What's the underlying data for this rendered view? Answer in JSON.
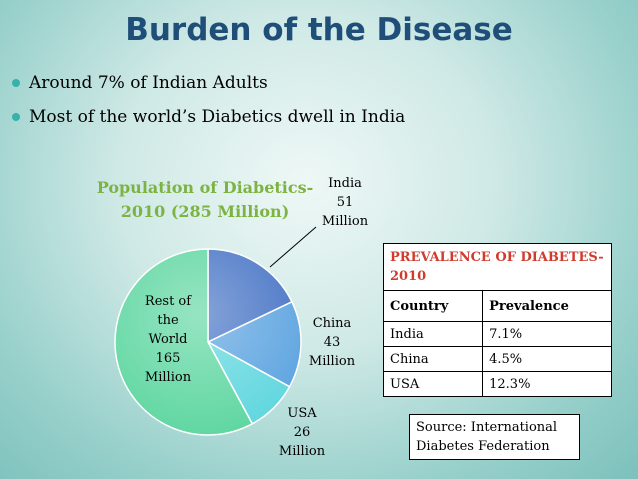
{
  "slide": {
    "title": "Burden of the Disease",
    "bullets": [
      "Around 7% of Indian Adults",
      "Most of the world’s Diabetics dwell in India"
    ]
  },
  "chart_data": {
    "type": "pie",
    "title_line1": "Population of Diabetics-",
    "title_line2": "2010 (285 Million)",
    "unit": "Million",
    "slices": [
      {
        "name": "India",
        "value": 51,
        "color": "#4472c4"
      },
      {
        "name": "China",
        "value": 43,
        "color": "#5ba3e0"
      },
      {
        "name": "USA",
        "value": 26,
        "color": "#5fd6de"
      },
      {
        "name": "Rest of the World",
        "value": 165,
        "color": "#5dd6a0"
      }
    ],
    "labels": {
      "india": [
        "India",
        "51",
        "Million"
      ],
      "china": [
        "China",
        "43",
        "Million"
      ],
      "usa": [
        "USA",
        "26",
        "Million"
      ],
      "rest": [
        "Rest of",
        "the",
        "World",
        "165",
        "Million"
      ]
    }
  },
  "prevalence_table": {
    "title": "PREVALENCE OF DIABETES-2010",
    "headers": [
      "Country",
      "Prevalence"
    ],
    "rows": [
      [
        "India",
        "7.1%"
      ],
      [
        "China",
        "4.5%"
      ],
      [
        "USA",
        "12.3%"
      ]
    ]
  },
  "source": "Source: International Diabetes Federation"
}
